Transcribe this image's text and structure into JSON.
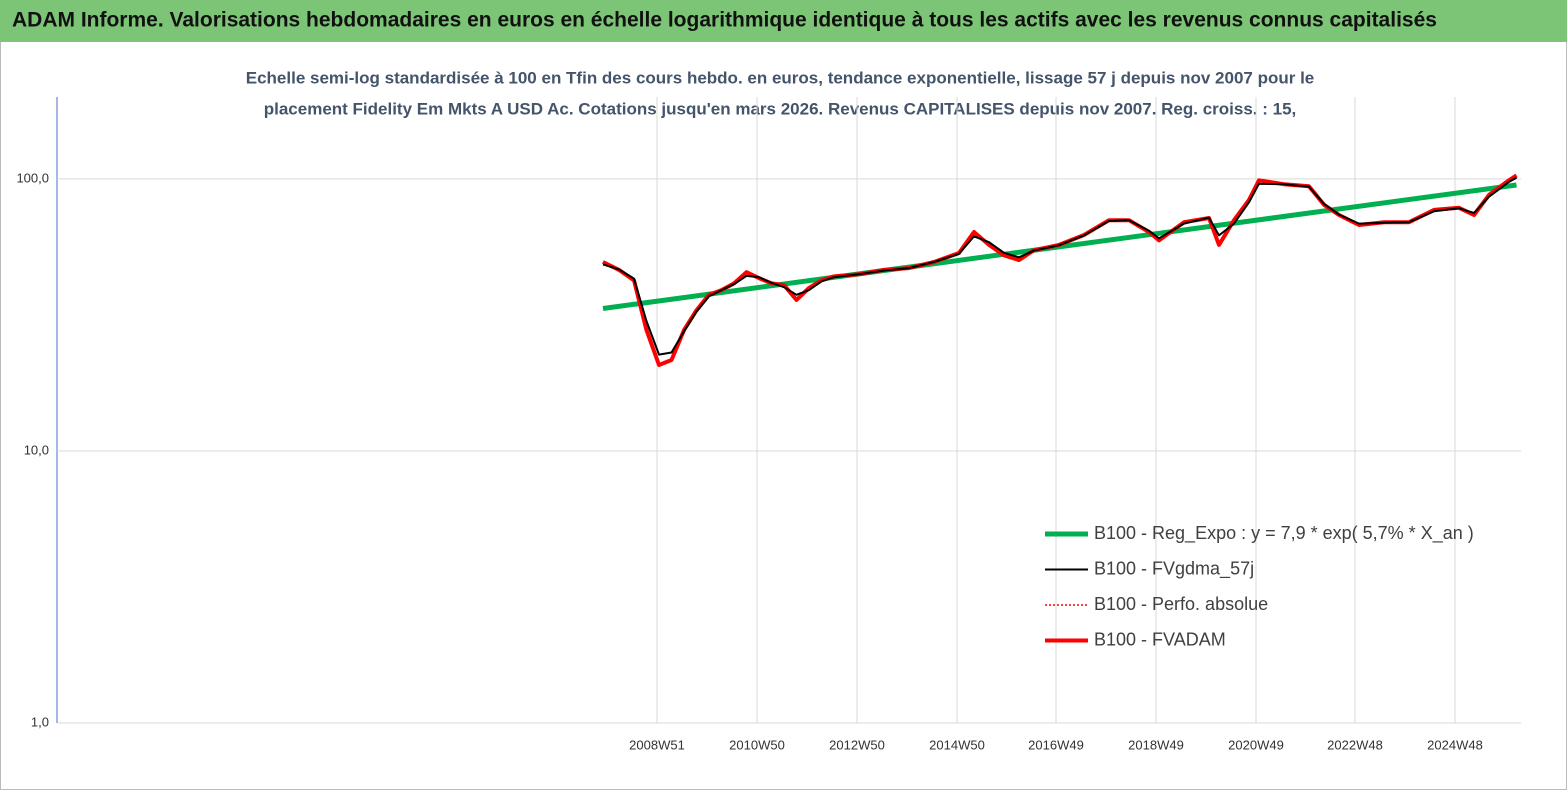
{
  "chart_data": {
    "type": "line",
    "title": "ADAM Informe. Valorisations hebdomadaires en euros en échelle logarithmique identique à tous les actifs avec les revenus connus capitalisés",
    "subtitle": [
      "Echelle semi-log standardisée à 100 en Tfin des cours hebdo. en euros, tendance exponentielle, lissage 57 j depuis nov 2007 pour le",
      "placement Fidelity Em Mkts A USD Ac.  Cotations jusqu'en mars 2026. Revenus CAPITALISES depuis nov 2007. Reg. croiss. : 15,"
    ],
    "log_scale": true,
    "xlim": [
      1996.96,
      2026.24
    ],
    "xticks": [
      {
        "value": 2008.96,
        "label": "2008W51"
      },
      {
        "value": 2010.96,
        "label": "2010W50"
      },
      {
        "value": 2012.96,
        "label": "2012W50"
      },
      {
        "value": 2014.96,
        "label": "2014W50"
      },
      {
        "value": 2016.94,
        "label": "2016W49"
      },
      {
        "value": 2018.94,
        "label": "2018W49"
      },
      {
        "value": 2020.94,
        "label": "2020W49"
      },
      {
        "value": 2022.92,
        "label": "2022W48"
      },
      {
        "value": 2024.92,
        "label": "2024W48"
      }
    ],
    "ylim": [
      1,
      200
    ],
    "yticks": [
      {
        "value": 1,
        "label": "1,0"
      },
      {
        "value": 10,
        "label": "10,0"
      },
      {
        "value": 100,
        "label": "100,0"
      }
    ],
    "grid": true,
    "legend": "bottom-right",
    "x": [
      2007.88,
      2008.2,
      2008.5,
      2008.75,
      2009.0,
      2009.25,
      2009.5,
      2009.75,
      2010.0,
      2010.25,
      2010.5,
      2010.75,
      2011.0,
      2011.25,
      2011.5,
      2011.75,
      2012.0,
      2012.25,
      2012.5,
      2013.0,
      2013.5,
      2014.0,
      2014.5,
      2015.0,
      2015.3,
      2015.6,
      2015.9,
      2016.2,
      2016.5,
      2017.0,
      2017.5,
      2018.0,
      2018.4,
      2018.8,
      2019.0,
      2019.5,
      2020.0,
      2020.2,
      2020.5,
      2020.8,
      2021.0,
      2021.5,
      2022.0,
      2022.3,
      2022.6,
      2023.0,
      2023.5,
      2024.0,
      2024.5,
      2025.0,
      2025.3,
      2025.6,
      2026.0,
      2026.15
    ],
    "series": [
      {
        "name": "B100 - Reg_Expo : y = 7,9 *  exp( 5,7% *   X_an )",
        "color": "#00b050",
        "width": 5,
        "x": [
          2007.88,
          2026.15
        ],
        "values": [
          33.4,
          95.0
        ]
      },
      {
        "name": "B100 - FVgdma_57j",
        "color": "#000000",
        "width": 2,
        "values": [
          48.5,
          46.5,
          43.0,
          30.0,
          22.6,
          23.0,
          27.5,
          32.5,
          37.0,
          39.0,
          41.0,
          44.0,
          43.5,
          41.5,
          40.0,
          37.5,
          39.0,
          42.0,
          43.5,
          44.6,
          46.0,
          47.0,
          49.5,
          53.0,
          61.5,
          58.5,
          53.5,
          51.5,
          54.5,
          57.0,
          62.0,
          70.0,
          70.5,
          64.5,
          60.5,
          68.5,
          72.0,
          62.0,
          68.5,
          82.0,
          96.0,
          95.5,
          93.5,
          81.0,
          74.0,
          68.5,
          69.0,
          69.3,
          76.0,
          78.0,
          75.0,
          86.0,
          97.5,
          101.0
        ]
      },
      {
        "name": "B100 - Perfo. absolue",
        "color": "#ff0000",
        "width": 1.5,
        "dash": "2,2",
        "values": [
          49.5,
          46.3,
          42.4,
          27.8,
          20.7,
          21.6,
          27.8,
          32.9,
          37.5,
          39.0,
          41.3,
          45.4,
          43.2,
          41.3,
          40.7,
          35.9,
          39.7,
          42.4,
          43.8,
          44.6,
          46.3,
          47.0,
          49.5,
          53.4,
          63.8,
          57.2,
          52.4,
          50.3,
          54.7,
          57.2,
          62.2,
          70.5,
          70.5,
          63.8,
          59.4,
          69.3,
          71.8,
          57.2,
          70.5,
          83.7,
          98.8,
          95.6,
          94.0,
          80.3,
          73.7,
          67.7,
          69.3,
          69.3,
          76.9,
          78.3,
          73.7,
          87.3,
          98.8,
          103
        ]
      },
      {
        "name": "B100 - FVADAM",
        "color": "#ff0000",
        "width": 4,
        "values": [
          49.5,
          46.3,
          42.4,
          27.8,
          20.7,
          21.6,
          27.8,
          32.9,
          37.5,
          39.0,
          41.3,
          45.4,
          43.2,
          41.3,
          40.7,
          35.9,
          39.7,
          42.4,
          43.8,
          44.6,
          46.3,
          47.0,
          49.5,
          53.4,
          63.8,
          57.2,
          52.4,
          50.3,
          54.7,
          57.2,
          62.2,
          70.5,
          70.5,
          63.8,
          59.4,
          69.3,
          71.8,
          57.2,
          70.5,
          83.7,
          98.8,
          95.6,
          94.0,
          80.3,
          73.7,
          67.7,
          69.3,
          69.3,
          76.9,
          78.3,
          73.7,
          87.3,
          98.8,
          103
        ]
      }
    ]
  }
}
